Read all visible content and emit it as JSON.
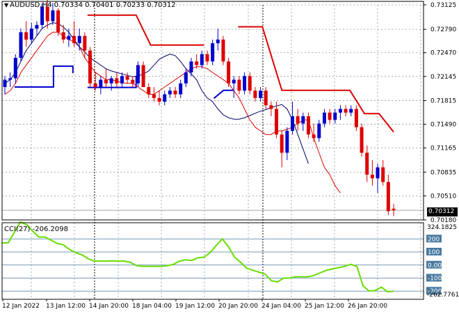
{
  "header": {
    "symbol": "AUDUSD,H4",
    "ohlc": "0.70334 0.70401 0.70233 0.70312"
  },
  "indicator": {
    "label": "CCI(27)",
    "value": "-206.2098",
    "max_label": "324.1825",
    "min_label": "-262.7761",
    "levels": [
      "200",
      "100",
      "0.00",
      "-100",
      "-200"
    ]
  },
  "current_price_label": "0.70312",
  "colors": {
    "bull": "#0000cc",
    "bear": "#dd0000",
    "ema_fast": "#dd0000",
    "ema_slow": "#000066",
    "stop_red": "#dd0000",
    "stop_blue": "#0000cc",
    "cci": "#66dd00",
    "cci_level": "#4a7aa0",
    "grid": "#8a96a6"
  },
  "chart_data": [
    {
      "type": "candlestick",
      "title": "AUDUSD,H4",
      "ylim": [
        0.7018,
        0.73125
      ],
      "y_ticks": [
        "0.73125",
        "0.72790",
        "0.72470",
        "0.72145",
        "0.71815",
        "0.71490",
        "0.71165",
        "0.70835",
        "0.70510",
        "0.70180"
      ],
      "x_ticks": [
        "12 Jan 2022",
        "13 Jan 12:00",
        "14 Jan 20:00",
        "18 Jan 04:00",
        "19 Jan 12:00",
        "20 Jan 20:00",
        "24 Jan 04:00",
        "25 Jan 12:00",
        "26 Jan 20:00"
      ],
      "candles": [
        [
          0.72,
          0.7215,
          0.719,
          0.721
        ],
        [
          0.721,
          0.722,
          0.72,
          0.7212
        ],
        [
          0.7212,
          0.7245,
          0.7205,
          0.724
        ],
        [
          0.724,
          0.728,
          0.7235,
          0.7275
        ],
        [
          0.7275,
          0.729,
          0.7255,
          0.7265
        ],
        [
          0.7265,
          0.7288,
          0.726,
          0.728
        ],
        [
          0.728,
          0.729,
          0.727,
          0.7285
        ],
        [
          0.7285,
          0.7315,
          0.728,
          0.731
        ],
        [
          0.731,
          0.732,
          0.728,
          0.729
        ],
        [
          0.729,
          0.7315,
          0.7285,
          0.7305
        ],
        [
          0.7305,
          0.7308,
          0.727,
          0.7275
        ],
        [
          0.7275,
          0.7285,
          0.726,
          0.7265
        ],
        [
          0.7265,
          0.728,
          0.7255,
          0.727
        ],
        [
          0.727,
          0.729,
          0.7255,
          0.726
        ],
        [
          0.726,
          0.728,
          0.725,
          0.727
        ],
        [
          0.727,
          0.7275,
          0.724,
          0.725
        ],
        [
          0.725,
          0.7255,
          0.72,
          0.7205
        ],
        [
          0.7205,
          0.722,
          0.7195,
          0.72
        ],
        [
          0.72,
          0.7215,
          0.719,
          0.721
        ],
        [
          0.721,
          0.7225,
          0.72,
          0.7205
        ],
        [
          0.7205,
          0.7215,
          0.7195,
          0.7212
        ],
        [
          0.7212,
          0.722,
          0.72,
          0.7205
        ],
        [
          0.7205,
          0.722,
          0.72,
          0.7215
        ],
        [
          0.7215,
          0.722,
          0.7205,
          0.721
        ],
        [
          0.721,
          0.7215,
          0.72,
          0.7205
        ],
        [
          0.7205,
          0.7235,
          0.72,
          0.723
        ],
        [
          0.723,
          0.7235,
          0.72,
          0.72
        ],
        [
          0.72,
          0.7205,
          0.7185,
          0.719
        ],
        [
          0.719,
          0.72,
          0.718,
          0.7185
        ],
        [
          0.7185,
          0.7195,
          0.7175,
          0.718
        ],
        [
          0.718,
          0.7195,
          0.7175,
          0.719
        ],
        [
          0.719,
          0.72,
          0.7185,
          0.7195
        ],
        [
          0.7195,
          0.72,
          0.7185,
          0.719
        ],
        [
          0.719,
          0.721,
          0.7185,
          0.7205
        ],
        [
          0.7205,
          0.7225,
          0.72,
          0.722
        ],
        [
          0.722,
          0.724,
          0.7215,
          0.7235
        ],
        [
          0.7235,
          0.7245,
          0.7225,
          0.723
        ],
        [
          0.723,
          0.725,
          0.7225,
          0.7245
        ],
        [
          0.7245,
          0.725,
          0.723,
          0.7235
        ],
        [
          0.7235,
          0.7265,
          0.723,
          0.726
        ],
        [
          0.726,
          0.728,
          0.725,
          0.7265
        ],
        [
          0.7265,
          0.727,
          0.723,
          0.7235
        ],
        [
          0.7235,
          0.724,
          0.72,
          0.7205
        ],
        [
          0.7205,
          0.7215,
          0.7185,
          0.721
        ],
        [
          0.721,
          0.7215,
          0.719,
          0.7195
        ],
        [
          0.7195,
          0.722,
          0.719,
          0.7215
        ],
        [
          0.7215,
          0.722,
          0.719,
          0.7195
        ],
        [
          0.7195,
          0.72,
          0.718,
          0.7185
        ],
        [
          0.7185,
          0.72,
          0.718,
          0.7195
        ],
        [
          0.7195,
          0.72,
          0.717,
          0.7175
        ],
        [
          0.7175,
          0.718,
          0.716,
          0.717
        ],
        [
          0.717,
          0.718,
          0.713,
          0.7135
        ],
        [
          0.7135,
          0.714,
          0.709,
          0.711
        ],
        [
          0.711,
          0.7145,
          0.71,
          0.714
        ],
        [
          0.714,
          0.718,
          0.7135,
          0.716
        ],
        [
          0.716,
          0.717,
          0.714,
          0.715
        ],
        [
          0.715,
          0.7165,
          0.714,
          0.716
        ],
        [
          0.716,
          0.7165,
          0.713,
          0.7135
        ],
        [
          0.7135,
          0.715,
          0.7125,
          0.713
        ],
        [
          0.713,
          0.7155,
          0.7125,
          0.715
        ],
        [
          0.715,
          0.717,
          0.7145,
          0.7165
        ],
        [
          0.7165,
          0.717,
          0.715,
          0.7155
        ],
        [
          0.7155,
          0.717,
          0.715,
          0.7165
        ],
        [
          0.7165,
          0.7175,
          0.7155,
          0.717
        ],
        [
          0.717,
          0.7175,
          0.716,
          0.7165
        ],
        [
          0.7165,
          0.7175,
          0.716,
          0.717
        ],
        [
          0.717,
          0.7175,
          0.714,
          0.7145
        ],
        [
          0.7145,
          0.715,
          0.7105,
          0.711
        ],
        [
          0.711,
          0.712,
          0.707,
          0.708
        ],
        [
          0.708,
          0.71,
          0.7065,
          0.7075
        ],
        [
          0.7075,
          0.7095,
          0.7055,
          0.709
        ],
        [
          0.709,
          0.71,
          0.7065,
          0.707
        ],
        [
          0.707,
          0.708,
          0.7025,
          0.703
        ],
        [
          0.70334,
          0.70401,
          0.70233,
          0.70312
        ]
      ],
      "ema_fast": [
        0.719,
        0.7195,
        0.7205,
        0.722,
        0.723,
        0.724,
        0.725,
        0.726,
        0.727,
        0.7275,
        0.7275,
        0.727,
        0.7265,
        0.7262,
        0.7255,
        0.724,
        0.723,
        0.722,
        0.7215,
        0.721,
        0.721,
        0.7208,
        0.7206,
        0.7205,
        0.7205,
        0.72,
        0.7195,
        0.719,
        0.719,
        0.7195,
        0.72,
        0.7205,
        0.721,
        0.7215,
        0.722,
        0.7225,
        0.7228,
        0.7228,
        0.7225,
        0.722,
        0.7215,
        0.721,
        0.7205,
        0.7195,
        0.7185,
        0.717,
        0.7155,
        0.7145,
        0.714,
        0.7135,
        0.7135,
        0.714,
        0.714,
        0.7142,
        0.7145,
        0.715,
        0.7155,
        0.7155,
        0.713,
        0.711,
        0.709,
        0.708,
        0.7065,
        0.7055
      ],
      "ema_slow": [
        0.7205,
        0.721,
        0.722,
        0.7235,
        0.725,
        0.726,
        0.727,
        0.728,
        0.7285,
        0.7288,
        0.7287,
        0.7282,
        0.7275,
        0.7265,
        0.7255,
        0.7248,
        0.724,
        0.7235,
        0.723,
        0.7225,
        0.7222,
        0.722,
        0.7218,
        0.7216,
        0.7214,
        0.7215,
        0.7218,
        0.7222,
        0.723,
        0.7238,
        0.7242,
        0.7245,
        0.7243,
        0.7235,
        0.7225,
        0.7218,
        0.721,
        0.7195,
        0.7185,
        0.718,
        0.717,
        0.7162,
        0.7158,
        0.7156,
        0.7156,
        0.7158,
        0.7161,
        0.7164,
        0.7167,
        0.7169,
        0.7172,
        0.7174,
        0.7176,
        0.717,
        0.7155,
        0.7135,
        0.7115,
        0.7095
      ]
    },
    {
      "type": "line",
      "title": "CCI(27) -206.2098",
      "ylim": [
        -262.7761,
        324.1825
      ],
      "levels": [
        200,
        100,
        0,
        -100,
        -200
      ],
      "values": [
        170,
        170,
        250,
        330,
        310,
        260,
        215,
        215,
        190,
        165,
        155,
        120,
        95,
        80,
        50,
        30,
        30,
        30,
        32,
        30,
        30,
        20,
        -5,
        -10,
        -10,
        -10,
        -10,
        -5,
        5,
        30,
        40,
        35,
        55,
        60,
        95,
        150,
        200,
        140,
        60,
        20,
        -25,
        -40,
        -55,
        -70,
        -120,
        -130,
        -100,
        -100,
        -90,
        -90,
        -90,
        -80,
        -60,
        -40,
        -30,
        -20,
        -10,
        5,
        -10,
        -160,
        -200,
        -195,
        -170,
        -205,
        -200
      ]
    }
  ]
}
